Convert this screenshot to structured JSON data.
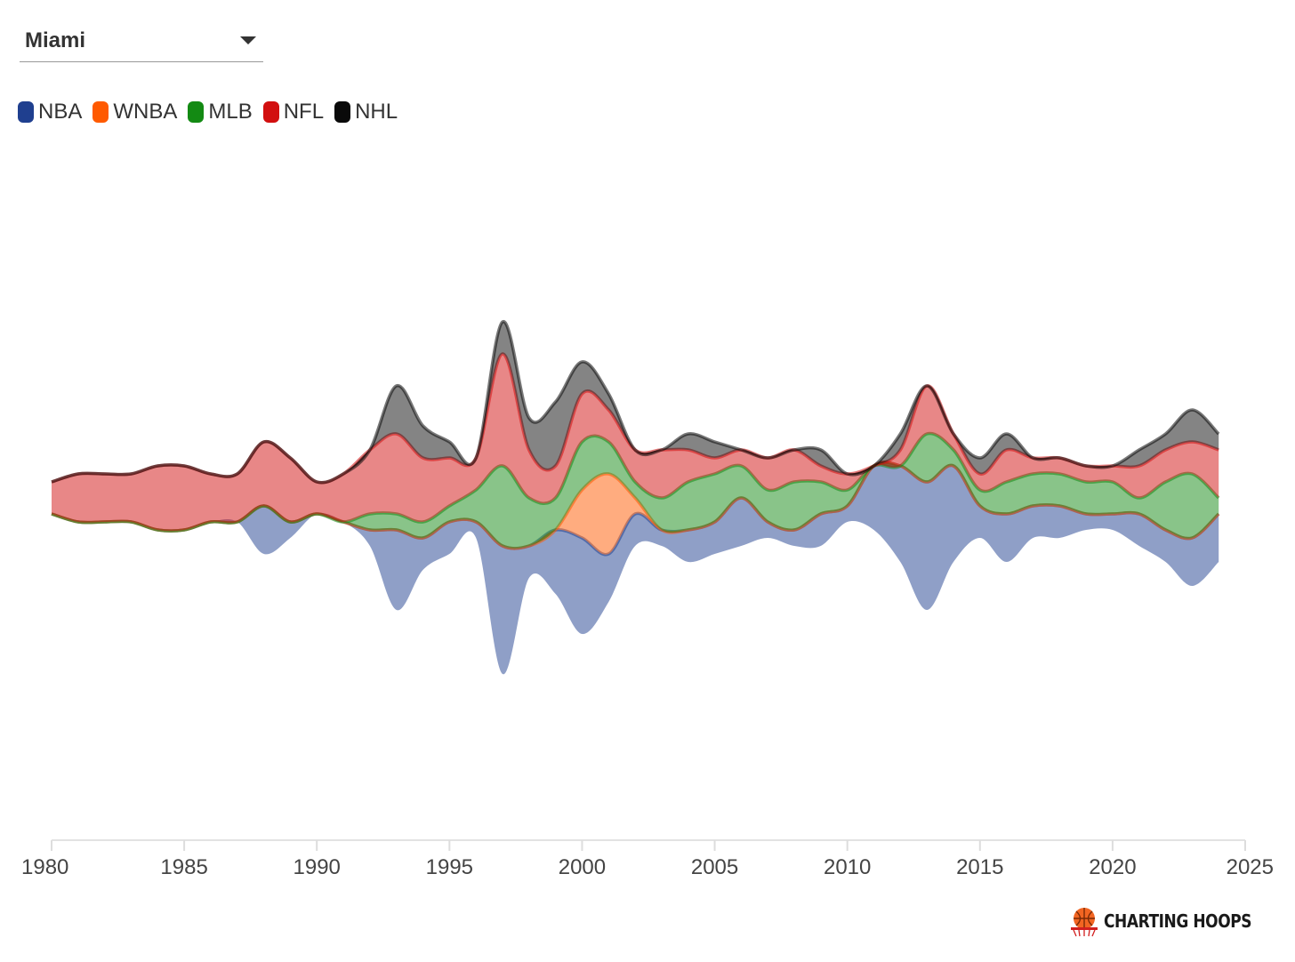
{
  "controls": {
    "city_select": {
      "value": "Miami"
    }
  },
  "legend": [
    {
      "label": "NBA",
      "color": "#1f3f8f"
    },
    {
      "label": "WNBA",
      "color": "#ff5a00"
    },
    {
      "label": "MLB",
      "color": "#138a13"
    },
    {
      "label": "NFL",
      "color": "#d20f0f"
    },
    {
      "label": "NHL",
      "color": "#0a0a0a"
    }
  ],
  "brand": {
    "text": "CHARTING HOOPS"
  },
  "chart_data": {
    "type": "area",
    "subtype": "streamgraph",
    "x": [
      1980,
      1981,
      1982,
      1983,
      1984,
      1985,
      1986,
      1987,
      1988,
      1989,
      1990,
      1991,
      1992,
      1993,
      1994,
      1995,
      1996,
      1997,
      1998,
      1999,
      2000,
      2001,
      2002,
      2003,
      2004,
      2005,
      2006,
      2007,
      2008,
      2009,
      2010,
      2011,
      2012,
      2013,
      2014,
      2015,
      2016,
      2017,
      2018,
      2019,
      2020,
      2021,
      2022,
      2023,
      2024
    ],
    "xlim": [
      1980,
      2025
    ],
    "xticks": [
      1980,
      1985,
      1990,
      1995,
      2000,
      2005,
      2010,
      2015,
      2020,
      2025
    ],
    "series": [
      {
        "name": "NBA",
        "color": "#1f3f8f",
        "values": [
          0,
          0,
          0,
          0,
          0,
          0,
          0,
          0,
          3,
          1,
          0,
          0,
          1,
          5,
          2,
          2,
          1,
          8,
          2,
          4,
          6,
          3,
          2,
          1,
          2,
          2,
          3,
          1,
          1,
          2,
          1,
          4,
          6,
          8,
          6,
          2,
          3,
          2,
          2,
          1,
          1,
          2,
          2,
          3,
          3
        ]
      },
      {
        "name": "WNBA",
        "color": "#ff5a00",
        "values": [
          0,
          0,
          0,
          0,
          0,
          0,
          0,
          0,
          0,
          0,
          0,
          0,
          0,
          0,
          0,
          0,
          0,
          0,
          0,
          0,
          3,
          5,
          1,
          0,
          0,
          0,
          0,
          0,
          0,
          0,
          0,
          0,
          0,
          0,
          0,
          0,
          0,
          0,
          0,
          0,
          0,
          0,
          0,
          0,
          0
        ]
      },
      {
        "name": "MLB",
        "color": "#138a13",
        "values": [
          0,
          0,
          0,
          0,
          0,
          0,
          0,
          0,
          0,
          0,
          0,
          0,
          1,
          1,
          1,
          1,
          2,
          5,
          3,
          2,
          3,
          2,
          1,
          2,
          3,
          3,
          2,
          2,
          3,
          2,
          1,
          0,
          0,
          3,
          1,
          1,
          2,
          2,
          2,
          2,
          2,
          1,
          3,
          4,
          1
        ]
      },
      {
        "name": "NFL",
        "color": "#d20f0f",
        "values": [
          2,
          3,
          3,
          3,
          4,
          4,
          3,
          3,
          4,
          4,
          2,
          3,
          4,
          5,
          4,
          3,
          2,
          7,
          3,
          2,
          3,
          2,
          2,
          3,
          2,
          1,
          1,
          2,
          2,
          1,
          1,
          0,
          1,
          3,
          1,
          1,
          2,
          1,
          1,
          1,
          1,
          2,
          2,
          2,
          3
        ]
      },
      {
        "name": "NHL",
        "color": "#0a0a0a",
        "values": [
          0,
          0,
          0,
          0,
          0,
          0,
          0,
          0,
          0,
          0,
          0,
          0,
          0,
          3,
          2,
          1,
          0,
          2,
          2,
          4,
          2,
          1,
          0,
          0,
          1,
          1,
          0,
          0,
          0,
          1,
          0,
          0,
          1,
          0,
          0,
          1,
          1,
          0,
          0,
          0,
          0,
          1,
          1,
          2,
          1
        ]
      }
    ],
    "title": "",
    "xlabel": "",
    "ylabel": ""
  }
}
